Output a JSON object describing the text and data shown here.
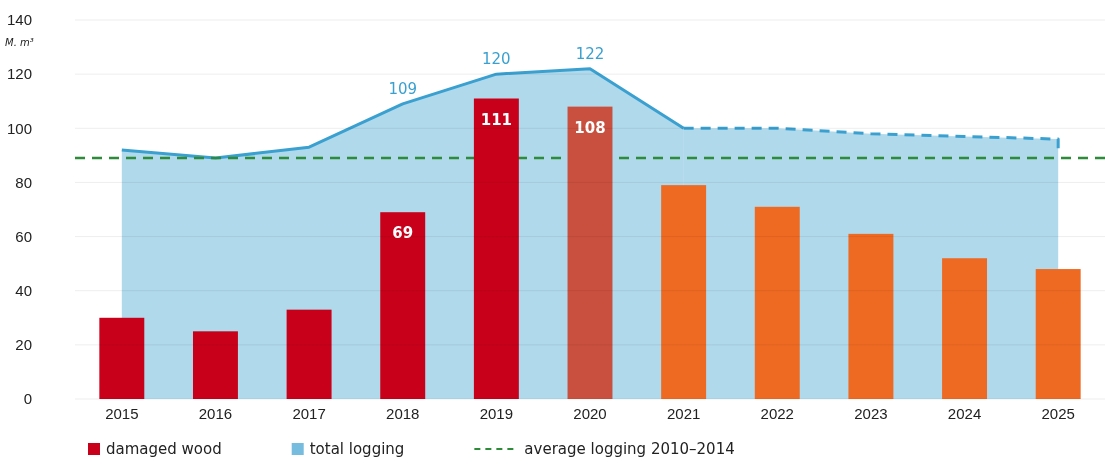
{
  "chart_data": {
    "type": "bar",
    "ylabel": "M. m³",
    "categories": [
      "2015",
      "2016",
      "2017",
      "2018",
      "2019",
      "2020",
      "2021",
      "2022",
      "2023",
      "2024",
      "2025"
    ],
    "series": [
      {
        "name": "damaged wood",
        "color": "#c8001a",
        "colors": [
          "#c8001a",
          "#c8001a",
          "#c8001a",
          "#c8001a",
          "#c8001a",
          "#c9503e",
          "#ee6a22",
          "#ee6a22",
          "#ee6a22",
          "#ee6a22",
          "#ee6a22"
        ],
        "values": [
          30,
          25,
          33,
          69,
          111,
          108,
          79,
          71,
          61,
          52,
          48
        ],
        "value_labels": [
          null,
          null,
          null,
          "69",
          "111",
          "108",
          null,
          null,
          null,
          null,
          null
        ]
      },
      {
        "name": "total logging",
        "type": "area",
        "color": "#3aa0d0",
        "line_style": "solid",
        "values": [
          92,
          89,
          93,
          109,
          120,
          122,
          100,
          null,
          null,
          null,
          null
        ],
        "value_labels": [
          null,
          null,
          null,
          "109",
          "120",
          "122",
          null,
          null,
          null,
          null,
          null
        ]
      },
      {
        "type": "area",
        "color": "#3aa0d0",
        "line_style": "dashed",
        "values": [
          null,
          null,
          null,
          null,
          null,
          null,
          100,
          100,
          98,
          97,
          96
        ]
      }
    ],
    "ref_lines": [
      {
        "axis": "y",
        "value": 89,
        "label": "average logging 2010–2014",
        "color": "#2e8b3a",
        "line_style": "dashed"
      }
    ],
    "ylim": [
      0,
      140
    ],
    "yticks": [
      0,
      20,
      40,
      60,
      80,
      100,
      120,
      140
    ],
    "grid": "y",
    "legend": "bottom"
  }
}
